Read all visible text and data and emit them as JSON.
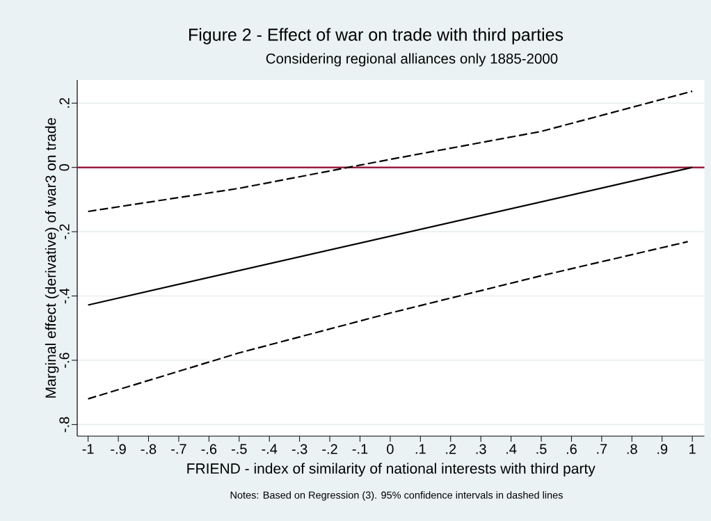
{
  "chart_data": {
    "type": "line",
    "title": "Figure 2 - Effect of war on trade with third parties",
    "subtitle": "Considering regional alliances only 1885-2000",
    "xlabel": "FRIEND - index of similarity of national interests with third party",
    "ylabel": "Marginal effect (derivative) of war3 on trade",
    "annotations": [
      "Notes: Based on Regression (3). 95% confidence intervals in dashed lines"
    ],
    "series": [
      {
        "color": "#000000",
        "line_style": "dashed",
        "x": [
          -1,
          -0.5,
          -0.1,
          0,
          0.5,
          1
        ],
        "values": [
          -0.137,
          -0.065,
          0.007,
          0.025,
          0.112,
          0.237
        ]
      },
      {
        "color": "#000000",
        "line_style": "solid",
        "x": [
          -1,
          1
        ],
        "values": [
          -0.428,
          0
        ]
      },
      {
        "color": "#000000",
        "line_style": "dashed",
        "x": [
          -1,
          -0.5,
          0,
          0.5,
          0.985
        ],
        "values": [
          -0.72,
          -0.577,
          -0.453,
          -0.337,
          -0.231
        ]
      }
    ],
    "xlim": [
      -1.036,
      1.04
    ],
    "ylim": [
      -0.836,
      0.272
    ],
    "xticks": [
      -1,
      {
        "value": -0.9,
        "label": "-.9"
      },
      {
        "value": -0.8,
        "label": "-.8"
      },
      {
        "value": -0.7,
        "label": "-.7"
      },
      {
        "value": -0.6,
        "label": "-.6"
      },
      {
        "value": -0.5,
        "label": "-.5"
      },
      {
        "value": -0.4,
        "label": "-.4"
      },
      {
        "value": -0.3,
        "label": "-.3"
      },
      {
        "value": -0.2,
        "label": "-.2"
      },
      {
        "value": -0.1,
        "label": "-.1"
      },
      0,
      {
        "value": 0.1,
        "label": ".1"
      },
      {
        "value": 0.2,
        "label": ".2"
      },
      {
        "value": 0.3,
        "label": ".3"
      },
      {
        "value": 0.4,
        "label": ".4"
      },
      {
        "value": 0.5,
        "label": ".5"
      },
      {
        "value": 0.6,
        "label": ".6"
      },
      {
        "value": 0.7,
        "label": ".7"
      },
      {
        "value": 0.8,
        "label": ".8"
      },
      {
        "value": 0.9,
        "label": ".9"
      },
      1
    ],
    "yticks": [
      {
        "value": -0.8,
        "label": "-.8"
      },
      {
        "value": -0.6,
        "label": "-.6"
      },
      {
        "value": -0.4,
        "label": "-.4"
      },
      {
        "value": -0.2,
        "label": "-.2"
      },
      0,
      {
        "value": 0.2,
        "label": ".2"
      }
    ],
    "grid": "y",
    "ref_lines": [
      {
        "axis": "y",
        "value": 0,
        "color": "#9b1d3d"
      }
    ]
  }
}
